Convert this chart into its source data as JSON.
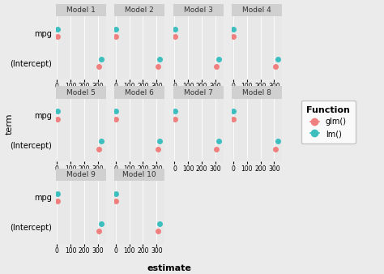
{
  "models": [
    "Model 1",
    "Model 2",
    "Model 3",
    "Model 4",
    "Model 5",
    "Model 6",
    "Model 7",
    "Model 8",
    "Model 9",
    "Model 10"
  ],
  "terms": [
    "mpg",
    "(Intercept)"
  ],
  "glm_color": "#F08080",
  "lm_color": "#3DBFBF",
  "background_color": "#EBEBEB",
  "panel_background": "#E8E8E8",
  "strip_background": "#D0D0D0",
  "grid_color": "#FFFFFF",
  "data": {
    "mpg": {
      "glm": {
        "estimate": 2.0,
        "ci_low": 1.5,
        "ci_high": 2.5
      },
      "lm": {
        "estimate": 2.0,
        "ci_low": 1.5,
        "ci_high": 2.5
      }
    },
    "(Intercept)": {
      "glm": {
        "estimate": 310,
        "ci_low": 295,
        "ci_high": 325
      },
      "lm": {
        "estimate": 325,
        "ci_low": 310,
        "ci_high": 340
      }
    }
  },
  "xlim": [
    -10,
    360
  ],
  "xticks": [
    0,
    100,
    200,
    300
  ],
  "xlabel": "estimate",
  "ylabel": "term",
  "legend_title": "Function",
  "legend_labels": [
    "glm()",
    "lm()"
  ],
  "title_fontsize": 6.5,
  "label_fontsize": 7,
  "tick_fontsize": 5.5,
  "legend_fontsize": 7,
  "dot_size": 4,
  "line_lw": 1.0,
  "row_models": [
    [
      "Model 1",
      "Model 2",
      "Model 3",
      "Model 4"
    ],
    [
      "Model 5",
      "Model 6",
      "Model 7",
      "Model 8"
    ],
    [
      "Model 9",
      "Model 10",
      null,
      null
    ]
  ]
}
